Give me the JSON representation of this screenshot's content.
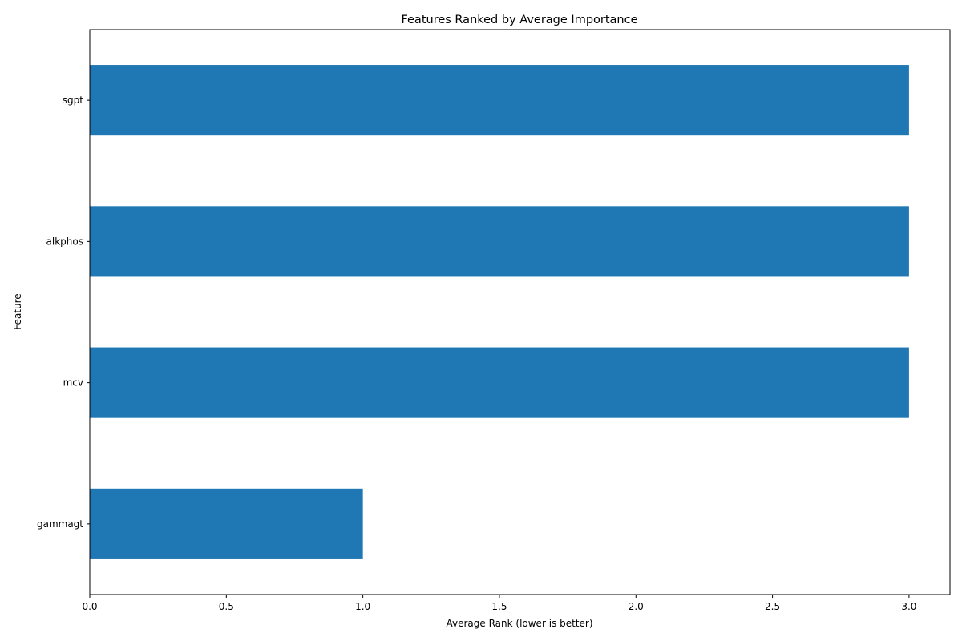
{
  "chart_data": {
    "type": "bar",
    "orientation": "horizontal",
    "title": "Features Ranked by Average Importance",
    "xlabel": "Average Rank (lower is better)",
    "ylabel": "Feature",
    "categories": [
      "gammagt",
      "mcv",
      "alkphos",
      "sgpt"
    ],
    "values": [
      1.0,
      3.0,
      3.0,
      3.0
    ],
    "xlim": [
      0,
      3.15
    ],
    "xticks": [
      0.0,
      0.5,
      1.0,
      1.5,
      2.0,
      2.5,
      3.0
    ],
    "xtick_labels": [
      "0.0",
      "0.5",
      "1.0",
      "1.5",
      "2.0",
      "2.5",
      "3.0"
    ],
    "grid": false,
    "legend": "none",
    "bar_color": "#1f77b4"
  }
}
